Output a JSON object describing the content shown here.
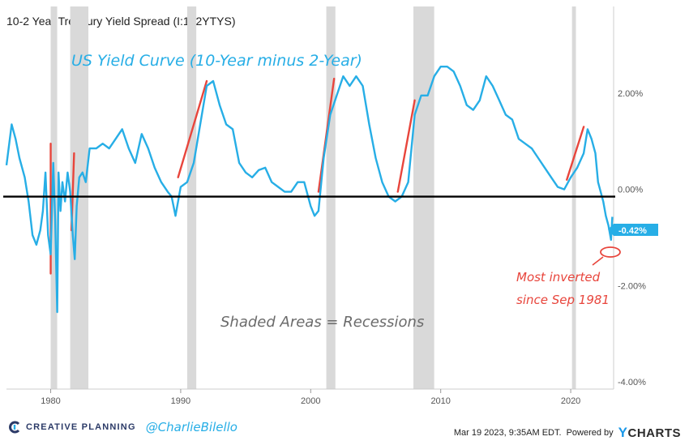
{
  "header": {
    "title": "10-2 Year Treasury Yield Spread (I:102YTYS)"
  },
  "chart_data": {
    "type": "line",
    "title": "US Yield Curve (10-Year minus 2-Year)",
    "annotation_shaded": "Shaded Areas = Recessions",
    "annotation_inverted_line1": "Most inverted",
    "annotation_inverted_line2": "since Sep 1981",
    "current_value_label": "-0.42%",
    "xlim": [
      1976.6,
      2023.3
    ],
    "ylim": [
      -4.0,
      3.95
    ],
    "x_ticks": [
      {
        "value": 1980,
        "label": "1980"
      },
      {
        "value": 1990,
        "label": "1990"
      },
      {
        "value": 2000,
        "label": "2000"
      },
      {
        "value": 2010,
        "label": "2010"
      },
      {
        "value": 2020,
        "label": "2020"
      }
    ],
    "y_ticks": [
      {
        "value": 2,
        "label": "2.00%"
      },
      {
        "value": 0,
        "label": "0.00%"
      },
      {
        "value": -2,
        "label": "-2.00%"
      },
      {
        "value": -4,
        "label": "-4.00%"
      }
    ],
    "zero_line": 0,
    "recessions": [
      [
        1980.0,
        1980.5
      ],
      [
        1981.5,
        1982.9
      ],
      [
        1990.5,
        1991.2
      ],
      [
        2001.2,
        2001.9
      ],
      [
        2007.9,
        2009.5
      ],
      [
        2020.1,
        2020.4
      ]
    ],
    "red_markers": [
      [
        [
          1980.0,
          -1.6
        ],
        [
          1980.0,
          1.1
        ]
      ],
      [
        [
          1981.6,
          -0.7
        ],
        [
          1981.8,
          0.9
        ]
      ],
      [
        [
          1989.8,
          0.4
        ],
        [
          1992.0,
          2.4
        ]
      ],
      [
        [
          2000.6,
          0.1
        ],
        [
          2001.8,
          2.45
        ]
      ],
      [
        [
          2006.7,
          0.1
        ],
        [
          2008.0,
          2.0
        ]
      ],
      [
        [
          2019.7,
          0.35
        ],
        [
          2021.0,
          1.45
        ]
      ]
    ],
    "series": [
      {
        "name": "10-2 Year Treasury Yield Spread",
        "color": "#27aee6",
        "x": [
          1976.6,
          1977.0,
          1977.3,
          1977.6,
          1978.0,
          1978.3,
          1978.6,
          1978.9,
          1979.2,
          1979.4,
          1979.6,
          1979.8,
          1980.0,
          1980.2,
          1980.35,
          1980.5,
          1980.6,
          1980.75,
          1980.9,
          1981.1,
          1981.3,
          1981.5,
          1981.7,
          1981.85,
          1982.0,
          1982.2,
          1982.45,
          1982.7,
          1983.0,
          1983.5,
          1984.0,
          1984.5,
          1985.0,
          1985.5,
          1986.0,
          1986.5,
          1987.0,
          1987.5,
          1988.0,
          1988.5,
          1989.0,
          1989.3,
          1989.6,
          1990.0,
          1990.5,
          1991.0,
          1991.5,
          1992.0,
          1992.5,
          1993.0,
          1993.5,
          1994.0,
          1994.5,
          1995.0,
          1995.5,
          1996.0,
          1996.5,
          1997.0,
          1997.5,
          1998.0,
          1998.5,
          1999.0,
          1999.5,
          2000.0,
          2000.3,
          2000.6,
          2001.0,
          2001.5,
          2002.0,
          2002.5,
          2003.0,
          2003.5,
          2004.0,
          2004.5,
          2005.0,
          2005.5,
          2006.0,
          2006.5,
          2007.0,
          2007.5,
          2008.0,
          2008.5,
          2009.0,
          2009.5,
          2010.0,
          2010.5,
          2011.0,
          2011.5,
          2012.0,
          2012.5,
          2013.0,
          2013.5,
          2014.0,
          2014.5,
          2015.0,
          2015.5,
          2016.0,
          2016.5,
          2017.0,
          2017.5,
          2018.0,
          2018.5,
          2019.0,
          2019.5,
          2020.0,
          2020.5,
          2021.0,
          2021.3,
          2021.6,
          2021.9,
          2022.1,
          2022.3,
          2022.5,
          2022.7,
          2022.9,
          2023.1,
          2023.2
        ],
        "values": [
          0.65,
          1.5,
          1.2,
          0.8,
          0.4,
          -0.1,
          -0.8,
          -1.0,
          -0.7,
          -0.3,
          0.5,
          -0.8,
          -1.2,
          0.7,
          -0.5,
          -2.4,
          0.5,
          -0.3,
          0.3,
          -0.1,
          0.5,
          0.1,
          -0.8,
          -1.3,
          -0.2,
          0.4,
          0.5,
          0.3,
          1.0,
          1.0,
          1.1,
          1.0,
          1.2,
          1.4,
          1.0,
          0.7,
          1.3,
          1.0,
          0.6,
          0.3,
          0.1,
          0.0,
          -0.4,
          0.2,
          0.3,
          0.7,
          1.5,
          2.3,
          2.4,
          1.9,
          1.5,
          1.4,
          0.7,
          0.5,
          0.4,
          0.55,
          0.6,
          0.3,
          0.2,
          0.1,
          0.1,
          0.3,
          0.3,
          -0.2,
          -0.4,
          -0.3,
          0.8,
          1.7,
          2.1,
          2.5,
          2.3,
          2.5,
          2.3,
          1.5,
          0.8,
          0.3,
          0.0,
          -0.1,
          0.0,
          0.3,
          1.7,
          2.1,
          2.1,
          2.5,
          2.7,
          2.7,
          2.6,
          2.3,
          1.9,
          1.8,
          2.0,
          2.5,
          2.3,
          2.0,
          1.7,
          1.6,
          1.2,
          1.1,
          1.0,
          0.8,
          0.6,
          0.4,
          0.2,
          0.15,
          0.4,
          0.6,
          0.9,
          1.4,
          1.2,
          0.9,
          0.3,
          0.1,
          -0.1,
          -0.4,
          -0.6,
          -0.9,
          -0.42
        ]
      }
    ]
  },
  "footer": {
    "brand": "CREATIVE PLANNING",
    "handle": "@CharlieBilello",
    "timestamp": "Mar 19 2023, 9:35AM EDT.",
    "powered_by": "Powered by",
    "provider_y": "Y",
    "provider_rest": "CHARTS"
  },
  "colors": {
    "series": "#27aee6",
    "recession": "#d9d9d9",
    "marker": "#e8453c",
    "zero_line": "#000000",
    "annotation_red": "#e8453c",
    "annotation_gray": "#6b6b6b",
    "brand_navy": "#2b3a67"
  }
}
